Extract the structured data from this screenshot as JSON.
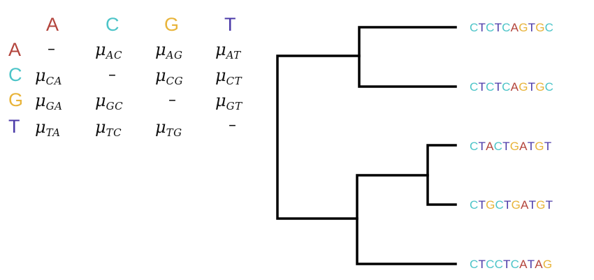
{
  "colors": {
    "A": "#b3443c",
    "C": "#4cc4c8",
    "G": "#e8b43a",
    "T": "#4b3aa8",
    "branch": "#000000"
  },
  "matrix": {
    "headers": [
      "A",
      "C",
      "G",
      "T"
    ],
    "rows": [
      {
        "label": "A",
        "cells": [
          {
            "dash": "–"
          },
          {
            "sym": "μ",
            "sub": "AC"
          },
          {
            "sym": "μ",
            "sub": "AG"
          },
          {
            "sym": "μ",
            "sub": "AT"
          }
        ]
      },
      {
        "label": "C",
        "cells": [
          {
            "sym": "μ",
            "sub": "CA"
          },
          {
            "dash": "–"
          },
          {
            "sym": "μ",
            "sub": "CG"
          },
          {
            "sym": "μ",
            "sub": "CT"
          }
        ]
      },
      {
        "label": "G",
        "cells": [
          {
            "sym": "μ",
            "sub": "GA"
          },
          {
            "sym": "μ",
            "sub": "GC"
          },
          {
            "dash": "–"
          },
          {
            "sym": "μ",
            "sub": "GT"
          }
        ]
      },
      {
        "label": "T",
        "cells": [
          {
            "sym": "μ",
            "sub": "TA"
          },
          {
            "sym": "μ",
            "sub": "TC"
          },
          {
            "sym": "μ",
            "sub": "TG"
          },
          {
            "dash": "–"
          }
        ]
      }
    ]
  },
  "tree": {
    "sequences": [
      "CTCTCAGTGC",
      "CTCTCAGTGC",
      "CTACTGATGT",
      "CTGCTGATGT",
      "CTCCTCATAG"
    ]
  }
}
